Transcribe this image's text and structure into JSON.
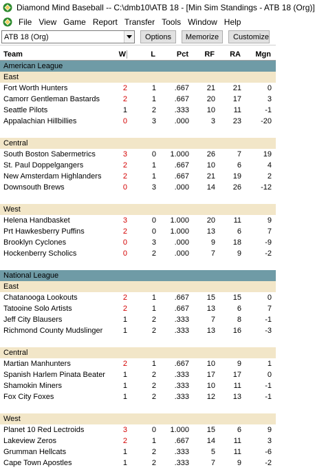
{
  "window": {
    "title": "Diamond Mind Baseball -- C:\\dmb10\\ATB 18 - [Min Sim Standings - ATB 18 (Org)]"
  },
  "menu": [
    "File",
    "View",
    "Game",
    "Report",
    "Transfer",
    "Tools",
    "Window",
    "Help"
  ],
  "toolbar": {
    "league_selected": "ATB 18 (Org)",
    "buttons": [
      "Options",
      "Memorize",
      "Customize"
    ]
  },
  "columns": [
    "Team",
    "W",
    "L",
    "Pct",
    "RF",
    "RA",
    "Mgn"
  ],
  "colors": {
    "league_header": "#6f9ba6",
    "division_header": "#f2e6c8",
    "wins_highlight": "#d40000"
  },
  "leagues": [
    {
      "name": "American League",
      "divisions": [
        {
          "name": "East",
          "teams": [
            {
              "team": "Fort Worth Hunters",
              "w": "2",
              "l": "1",
              "pct": ".667",
              "rf": "21",
              "ra": "21",
              "mgn": "0"
            },
            {
              "team": "Camorr Gentleman Bastards",
              "w": "2",
              "l": "1",
              "pct": ".667",
              "rf": "20",
              "ra": "17",
              "mgn": "3"
            },
            {
              "team": "Seattle Pilots",
              "w": "1",
              "l": "2",
              "pct": ".333",
              "rf": "10",
              "ra": "11",
              "mgn": "-1"
            },
            {
              "team": "Appalachian Hillbillies",
              "w": "0",
              "l": "3",
              "pct": ".000",
              "rf": "3",
              "ra": "23",
              "mgn": "-20"
            }
          ]
        },
        {
          "name": "Central",
          "teams": [
            {
              "team": "South Boston Sabermetrics",
              "w": "3",
              "l": "0",
              "pct": "1.000",
              "rf": "26",
              "ra": "7",
              "mgn": "19"
            },
            {
              "team": "St. Paul Doppelgangers",
              "w": "2",
              "l": "1",
              "pct": ".667",
              "rf": "10",
              "ra": "6",
              "mgn": "4"
            },
            {
              "team": "New Amsterdam Highlanders",
              "w": "2",
              "l": "1",
              "pct": ".667",
              "rf": "21",
              "ra": "19",
              "mgn": "2"
            },
            {
              "team": "Downsouth Brews",
              "w": "0",
              "l": "3",
              "pct": ".000",
              "rf": "14",
              "ra": "26",
              "mgn": "-12"
            }
          ]
        },
        {
          "name": "West",
          "teams": [
            {
              "team": "Helena Handbasket",
              "w": "3",
              "l": "0",
              "pct": "1.000",
              "rf": "20",
              "ra": "11",
              "mgn": "9"
            },
            {
              "team": "Prt Hawkesberry Puffins",
              "w": "2",
              "l": "0",
              "pct": "1.000",
              "rf": "13",
              "ra": "6",
              "mgn": "7"
            },
            {
              "team": "Brooklyn Cyclones",
              "w": "0",
              "l": "3",
              "pct": ".000",
              "rf": "9",
              "ra": "18",
              "mgn": "-9"
            },
            {
              "team": "Hockenberry Scholics",
              "w": "0",
              "l": "2",
              "pct": ".000",
              "rf": "7",
              "ra": "9",
              "mgn": "-2"
            }
          ]
        }
      ]
    },
    {
      "name": "National League",
      "divisions": [
        {
          "name": "East",
          "teams": [
            {
              "team": "Chatanooga Lookouts",
              "w": "2",
              "l": "1",
              "pct": ".667",
              "rf": "15",
              "ra": "15",
              "mgn": "0"
            },
            {
              "team": "Tatooine Solo Artists",
              "w": "2",
              "l": "1",
              "pct": ".667",
              "rf": "13",
              "ra": "6",
              "mgn": "7"
            },
            {
              "team": "Jeff City Blausers",
              "w": "1",
              "l": "2",
              "pct": ".333",
              "rf": "7",
              "ra": "8",
              "mgn": "-1"
            },
            {
              "team": "Richmond County Mudslinger",
              "w": "1",
              "l": "2",
              "pct": ".333",
              "rf": "13",
              "ra": "16",
              "mgn": "-3"
            }
          ]
        },
        {
          "name": "Central",
          "teams": [
            {
              "team": "Martian Manhunters",
              "w": "2",
              "l": "1",
              "pct": ".667",
              "rf": "10",
              "ra": "9",
              "mgn": "1"
            },
            {
              "team": "Spanish Harlem Pinata Beater",
              "w": "1",
              "l": "2",
              "pct": ".333",
              "rf": "17",
              "ra": "17",
              "mgn": "0"
            },
            {
              "team": "Shamokin Miners",
              "w": "1",
              "l": "2",
              "pct": ".333",
              "rf": "10",
              "ra": "11",
              "mgn": "-1"
            },
            {
              "team": "Fox City Foxes",
              "w": "1",
              "l": "2",
              "pct": ".333",
              "rf": "12",
              "ra": "13",
              "mgn": "-1"
            }
          ]
        },
        {
          "name": "West",
          "teams": [
            {
              "team": "Planet 10 Red Lectroids",
              "w": "3",
              "l": "0",
              "pct": "1.000",
              "rf": "15",
              "ra": "6",
              "mgn": "9"
            },
            {
              "team": "Lakeview Zeros",
              "w": "2",
              "l": "1",
              "pct": ".667",
              "rf": "14",
              "ra": "11",
              "mgn": "3"
            },
            {
              "team": "Grumman Hellcats",
              "w": "1",
              "l": "2",
              "pct": ".333",
              "rf": "5",
              "ra": "11",
              "mgn": "-6"
            },
            {
              "team": "Cape Town Apostles",
              "w": "1",
              "l": "2",
              "pct": ".333",
              "rf": "7",
              "ra": "9",
              "mgn": "-2"
            }
          ]
        }
      ]
    }
  ]
}
